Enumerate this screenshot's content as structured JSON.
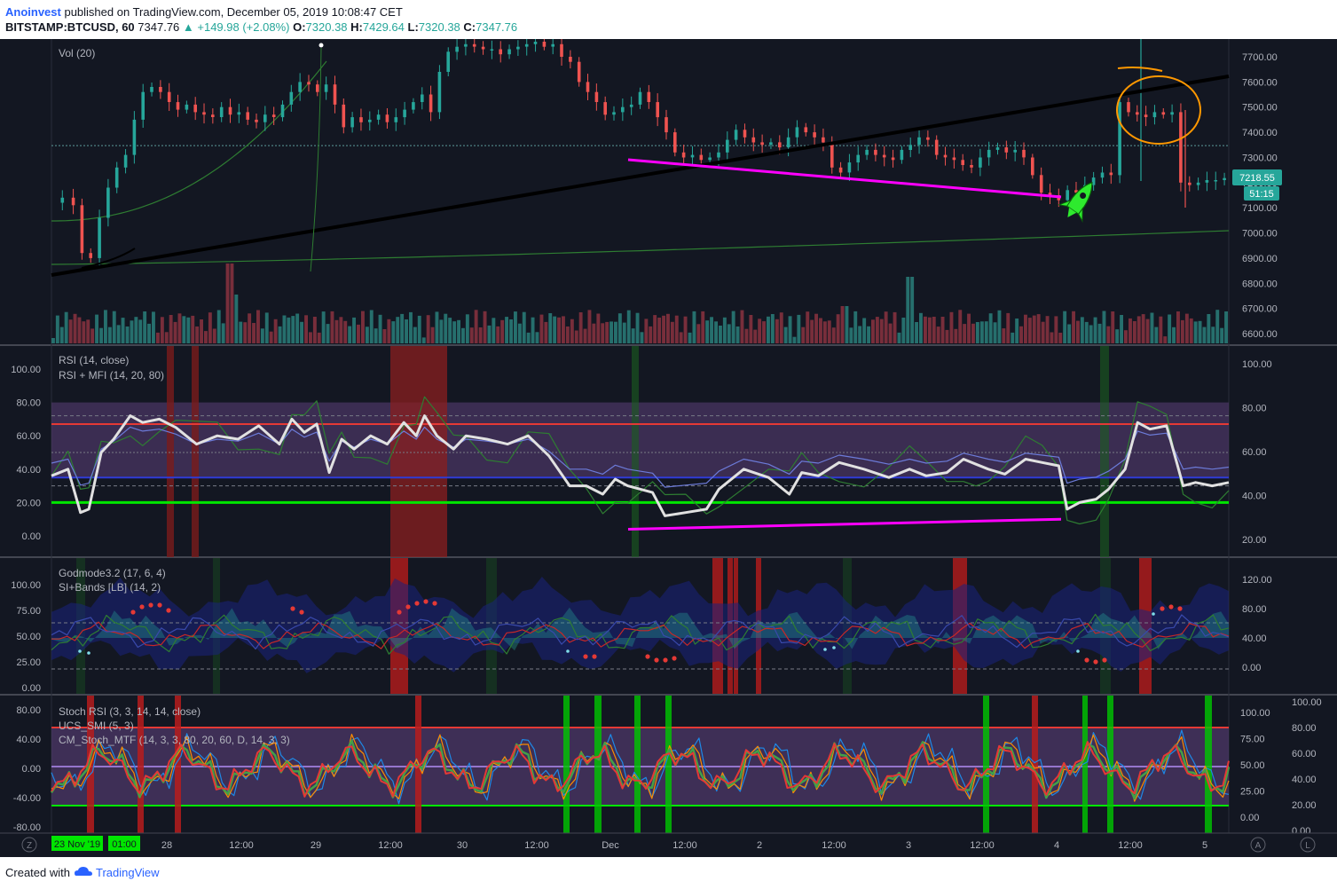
{
  "header": {
    "author": "Anoinvest",
    "published": "published on TradingView.com, December 05, 2019 10:08:47 CET",
    "symbol": "BITSTAMP:BTCUSD, 60",
    "last": "7347.76",
    "change": "▲ +149.98 (+2.08%)",
    "o_label": "O:",
    "o_value": "7320.38",
    "h_label": "H:",
    "h_value": "7429.64",
    "l_label": "L:",
    "l_value": "7320.38",
    "c_label": "C:",
    "c_value": "7347.76"
  },
  "footer": {
    "created_with": "Created with",
    "brand": "TradingView"
  },
  "colors": {
    "bg": "#131722",
    "grid": "#2a2e39",
    "text": "#b2b5be",
    "up": "#26a69a",
    "down": "#ef5350",
    "trendline": "#000000",
    "magenta": "#ff00ff",
    "rsi_white": "#e1e1e1",
    "green_level": "#00e600",
    "red_level": "#e53935",
    "blue_level": "#2f3bd6",
    "orange_circle": "#ff9800"
  },
  "icons": {
    "rocket": "rocket-icon",
    "alert": "alert-circle-icon",
    "settings": "gear-icon"
  },
  "chart_data": [
    {
      "type": "candlestick",
      "title": "BITSTAMP:BTCUSD, 60",
      "indicator": "Vol (20)",
      "price_ticks": [
        "7700.00",
        "7600.00",
        "7500.00",
        "7400.00",
        "7300.00",
        "7200.00",
        "7100.00",
        "7000.00",
        "6900.00",
        "6800.00",
        "6700.00",
        "6600.00"
      ],
      "ylim": [
        6570,
        7775
      ],
      "last_price_label": "7218.55",
      "countdown_label": "51:15",
      "x_ticks": [
        "28",
        "12:00",
        "29",
        "12:00",
        "30",
        "12:00",
        "Dec",
        "12:00",
        "2",
        "12:00",
        "3",
        "12:00",
        "4",
        "12:00",
        "5"
      ],
      "cursor_date_label": "23 Nov '19",
      "cursor_time_label": "01:00",
      "close_path": [
        [
          0,
          7120
        ],
        [
          5,
          7140
        ],
        [
          10,
          7110
        ],
        [
          14,
          6920
        ],
        [
          18,
          6900
        ],
        [
          22,
          7060
        ],
        [
          26,
          7180
        ],
        [
          30,
          7260
        ],
        [
          34,
          7310
        ],
        [
          38,
          7450
        ],
        [
          42,
          7560
        ],
        [
          46,
          7580
        ],
        [
          50,
          7560
        ],
        [
          54,
          7520
        ],
        [
          58,
          7490
        ],
        [
          62,
          7510
        ],
        [
          66,
          7480
        ],
        [
          70,
          7470
        ],
        [
          74,
          7460
        ],
        [
          78,
          7500
        ],
        [
          82,
          7470
        ],
        [
          86,
          7480
        ],
        [
          90,
          7450
        ],
        [
          94,
          7440
        ],
        [
          98,
          7470
        ],
        [
          102,
          7460
        ],
        [
          106,
          7510
        ],
        [
          110,
          7560
        ],
        [
          114,
          7600
        ],
        [
          118,
          7590
        ],
        [
          122,
          7560
        ],
        [
          126,
          7590
        ],
        [
          130,
          7510
        ],
        [
          134,
          7420
        ],
        [
          138,
          7460
        ],
        [
          142,
          7440
        ],
        [
          146,
          7450
        ],
        [
          150,
          7470
        ],
        [
          154,
          7440
        ],
        [
          158,
          7460
        ],
        [
          162,
          7490
        ],
        [
          166,
          7520
        ],
        [
          170,
          7550
        ],
        [
          174,
          7480
        ],
        [
          178,
          7640
        ],
        [
          182,
          7720
        ],
        [
          186,
          7740
        ],
        [
          190,
          7750
        ],
        [
          194,
          7740
        ],
        [
          198,
          7730
        ],
        [
          202,
          7730
        ],
        [
          206,
          7710
        ],
        [
          210,
          7730
        ],
        [
          214,
          7740
        ],
        [
          218,
          7750
        ],
        [
          222,
          7760
        ],
        [
          226,
          7740
        ],
        [
          230,
          7750
        ],
        [
          234,
          7700
        ],
        [
          238,
          7680
        ],
        [
          242,
          7600
        ],
        [
          246,
          7560
        ],
        [
          250,
          7520
        ],
        [
          254,
          7470
        ],
        [
          258,
          7480
        ],
        [
          262,
          7500
        ],
        [
          266,
          7510
        ],
        [
          270,
          7560
        ],
        [
          274,
          7520
        ],
        [
          278,
          7460
        ],
        [
          282,
          7400
        ],
        [
          286,
          7320
        ],
        [
          290,
          7300
        ],
        [
          294,
          7310
        ],
        [
          298,
          7290
        ],
        [
          302,
          7300
        ],
        [
          306,
          7320
        ],
        [
          310,
          7370
        ],
        [
          314,
          7410
        ],
        [
          318,
          7380
        ],
        [
          322,
          7360
        ],
        [
          326,
          7350
        ],
        [
          330,
          7360
        ],
        [
          334,
          7340
        ],
        [
          338,
          7380
        ],
        [
          342,
          7420
        ],
        [
          346,
          7400
        ],
        [
          350,
          7380
        ],
        [
          354,
          7360
        ],
        [
          358,
          7260
        ],
        [
          362,
          7240
        ],
        [
          366,
          7280
        ],
        [
          370,
          7310
        ],
        [
          374,
          7330
        ],
        [
          378,
          7310
        ],
        [
          382,
          7300
        ],
        [
          386,
          7290
        ],
        [
          390,
          7330
        ],
        [
          394,
          7350
        ],
        [
          398,
          7380
        ],
        [
          402,
          7370
        ],
        [
          406,
          7310
        ],
        [
          410,
          7300
        ],
        [
          414,
          7290
        ],
        [
          418,
          7270
        ],
        [
          422,
          7260
        ],
        [
          426,
          7300
        ],
        [
          430,
          7330
        ],
        [
          434,
          7340
        ],
        [
          438,
          7320
        ],
        [
          442,
          7330
        ],
        [
          446,
          7300
        ],
        [
          450,
          7230
        ],
        [
          454,
          7160
        ],
        [
          458,
          7150
        ],
        [
          462,
          7130
        ],
        [
          466,
          7170
        ],
        [
          470,
          7160
        ],
        [
          474,
          7190
        ],
        [
          478,
          7220
        ],
        [
          482,
          7240
        ],
        [
          486,
          7230
        ],
        [
          490,
          7520
        ],
        [
          494,
          7480
        ],
        [
          498,
          7470
        ],
        [
          502,
          7460
        ],
        [
          506,
          7480
        ],
        [
          510,
          7470
        ],
        [
          514,
          7480
        ],
        [
          518,
          7200
        ],
        [
          522,
          7190
        ],
        [
          526,
          7200
        ],
        [
          530,
          7210
        ],
        [
          534,
          7210
        ],
        [
          538,
          7218
        ]
      ],
      "annotations": [
        "black rising trendline",
        "magenta lower-low trendline",
        "green rocket",
        "orange circle"
      ]
    },
    {
      "type": "line",
      "title": "RSI (14, close)",
      "subtitle": "RSI + MFI (14, 20, 80)",
      "left_ticks": [
        "100.00",
        "80.00",
        "60.00",
        "40.00",
        "20.00",
        "0.00"
      ],
      "right_ticks": [
        "100.00",
        "80.00",
        "60.00",
        "40.00",
        "20.00"
      ],
      "levels": [
        67,
        35,
        20
      ],
      "rsi_path": [
        [
          0,
          36
        ],
        [
          8,
          40
        ],
        [
          14,
          14
        ],
        [
          18,
          16
        ],
        [
          24,
          50
        ],
        [
          30,
          58
        ],
        [
          38,
          72
        ],
        [
          44,
          68
        ],
        [
          52,
          70
        ],
        [
          60,
          65
        ],
        [
          70,
          55
        ],
        [
          80,
          60
        ],
        [
          90,
          58
        ],
        [
          100,
          66
        ],
        [
          110,
          55
        ],
        [
          116,
          70
        ],
        [
          122,
          62
        ],
        [
          128,
          67
        ],
        [
          134,
          38
        ],
        [
          140,
          58
        ],
        [
          146,
          52
        ],
        [
          154,
          60
        ],
        [
          162,
          55
        ],
        [
          170,
          68
        ],
        [
          176,
          60
        ],
        [
          180,
          72
        ],
        [
          186,
          60
        ],
        [
          194,
          52
        ],
        [
          200,
          60
        ],
        [
          210,
          58
        ],
        [
          220,
          55
        ],
        [
          230,
          60
        ],
        [
          240,
          48
        ],
        [
          250,
          30
        ],
        [
          258,
          30
        ],
        [
          266,
          25
        ],
        [
          272,
          34
        ],
        [
          278,
          30
        ],
        [
          290,
          26
        ],
        [
          296,
          12
        ],
        [
          306,
          14
        ],
        [
          316,
          16
        ],
        [
          322,
          28
        ],
        [
          334,
          40
        ],
        [
          346,
          35
        ],
        [
          356,
          25
        ],
        [
          362,
          38
        ],
        [
          370,
          36
        ],
        [
          380,
          44
        ],
        [
          392,
          40
        ],
        [
          404,
          35
        ],
        [
          414,
          40
        ],
        [
          422,
          36
        ],
        [
          432,
          38
        ],
        [
          440,
          46
        ],
        [
          446,
          43
        ],
        [
          452,
          40
        ],
        [
          460,
          37
        ],
        [
          470,
          46
        ],
        [
          478,
          44
        ],
        [
          486,
          42
        ],
        [
          490,
          16
        ],
        [
          496,
          20
        ],
        [
          504,
          22
        ],
        [
          510,
          28
        ],
        [
          518,
          40
        ],
        [
          524,
          68
        ],
        [
          530,
          64
        ],
        [
          538,
          66
        ],
        [
          546,
          30
        ],
        [
          552,
          32
        ],
        [
          560,
          30
        ],
        [
          568,
          32
        ]
      ],
      "note": "magenta bullish divergence line"
    },
    {
      "type": "line",
      "title": "Godmode3.2 (17, 6, 4)",
      "subtitle": "SI+Bands [LB] (14, 2)",
      "left_ticks": [
        "100.00",
        "75.00",
        "50.00",
        "25.00",
        "0.00"
      ],
      "right_ticks": [
        "120.00",
        "80.00",
        "40.00",
        "0.00"
      ]
    },
    {
      "type": "line",
      "title": "Stoch RSI (3, 3, 14, 14, close)",
      "series_labels": [
        "UCS_SMI (5, 3)",
        "CM_Stoch_MTF (14, 3, 3, 80, 20, 60, D, 14, 3, 3)"
      ],
      "left_ticks": [
        "80.00",
        "40.00",
        "0.00",
        "-40.00",
        "-80.00"
      ],
      "right_ticks_a": [
        "100.00",
        "75.00",
        "50.00",
        "25.00",
        "0.00"
      ],
      "right_ticks_b": [
        "100.00",
        "80.00",
        "60.00",
        "40.00",
        "20.00",
        "0.00"
      ]
    }
  ]
}
